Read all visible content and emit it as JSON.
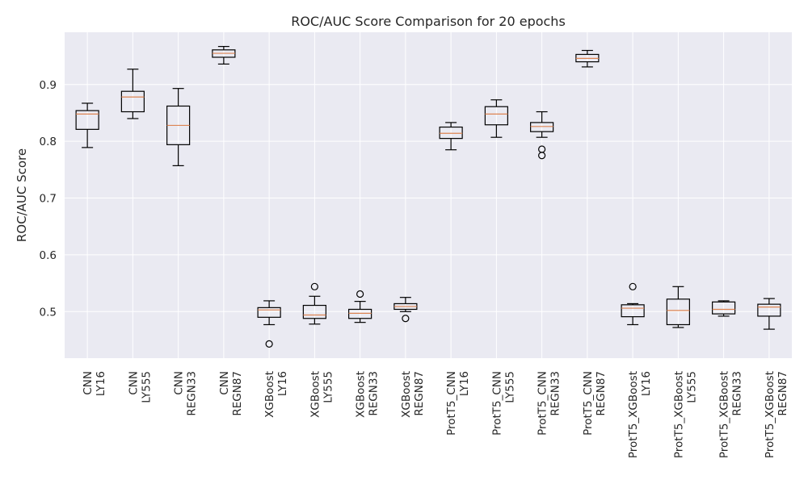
{
  "chart_data": {
    "type": "boxplot",
    "title": "ROC/AUC Score Comparison for 20 epochs",
    "xlabel": "",
    "ylabel": "ROC/AUC Score",
    "ylim": [
      0.418,
      0.992
    ],
    "yticks": [
      0.5,
      0.6,
      0.7,
      0.8,
      0.9
    ],
    "ytick_labels": [
      "0.5",
      "0.6",
      "0.7",
      "0.8",
      "0.9"
    ],
    "grid": true,
    "categories": [
      [
        "CNN",
        "LY16"
      ],
      [
        "CNN",
        "LY555"
      ],
      [
        "CNN",
        "REGN33"
      ],
      [
        "CNN",
        "REGN87"
      ],
      [
        "XGBoost",
        "LY16"
      ],
      [
        "XGBoost",
        "LY555"
      ],
      [
        "XGBoost",
        "REGN33"
      ],
      [
        "XGBoost",
        "REGN87"
      ],
      [
        "ProtT5_CNN",
        "LY16"
      ],
      [
        "ProtT5_CNN",
        "LY555"
      ],
      [
        "ProtT5_CNN",
        "REGN33"
      ],
      [
        "ProtT5_CNN",
        "REGN87"
      ],
      [
        "ProtT5_XGBoost",
        "LY16"
      ],
      [
        "ProtT5_XGBoost",
        "LY555"
      ],
      [
        "ProtT5_XGBoost",
        "REGN33"
      ],
      [
        "ProtT5_XGBoost",
        "REGN87"
      ]
    ],
    "boxes": [
      {
        "whisker_low": 0.789,
        "q1": 0.821,
        "median": 0.848,
        "q3": 0.854,
        "whisker_high": 0.867,
        "outliers": []
      },
      {
        "whisker_low": 0.84,
        "q1": 0.852,
        "median": 0.878,
        "q3": 0.888,
        "whisker_high": 0.927,
        "outliers": []
      },
      {
        "whisker_low": 0.757,
        "q1": 0.794,
        "median": 0.828,
        "q3": 0.862,
        "whisker_high": 0.893,
        "outliers": []
      },
      {
        "whisker_low": 0.936,
        "q1": 0.948,
        "median": 0.955,
        "q3": 0.961,
        "whisker_high": 0.967,
        "outliers": []
      },
      {
        "whisker_low": 0.477,
        "q1": 0.49,
        "median": 0.503,
        "q3": 0.507,
        "whisker_high": 0.519,
        "outliers": [
          0.443
        ]
      },
      {
        "whisker_low": 0.478,
        "q1": 0.488,
        "median": 0.494,
        "q3": 0.511,
        "whisker_high": 0.527,
        "outliers": [
          0.544
        ]
      },
      {
        "whisker_low": 0.481,
        "q1": 0.488,
        "median": 0.497,
        "q3": 0.504,
        "whisker_high": 0.518,
        "outliers": [
          0.531
        ]
      },
      {
        "whisker_low": 0.5,
        "q1": 0.504,
        "median": 0.509,
        "q3": 0.514,
        "whisker_high": 0.525,
        "outliers": [
          0.488
        ]
      },
      {
        "whisker_low": 0.785,
        "q1": 0.805,
        "median": 0.814,
        "q3": 0.825,
        "whisker_high": 0.833,
        "outliers": []
      },
      {
        "whisker_low": 0.807,
        "q1": 0.829,
        "median": 0.848,
        "q3": 0.861,
        "whisker_high": 0.873,
        "outliers": []
      },
      {
        "whisker_low": 0.807,
        "q1": 0.817,
        "median": 0.826,
        "q3": 0.833,
        "whisker_high": 0.852,
        "outliers": [
          0.786,
          0.775
        ]
      },
      {
        "whisker_low": 0.931,
        "q1": 0.94,
        "median": 0.946,
        "q3": 0.953,
        "whisker_high": 0.96,
        "outliers": []
      },
      {
        "whisker_low": 0.477,
        "q1": 0.491,
        "median": 0.506,
        "q3": 0.512,
        "whisker_high": 0.514,
        "outliers": [
          0.544
        ]
      },
      {
        "whisker_low": 0.472,
        "q1": 0.477,
        "median": 0.502,
        "q3": 0.522,
        "whisker_high": 0.544,
        "outliers": []
      },
      {
        "whisker_low": 0.492,
        "q1": 0.496,
        "median": 0.504,
        "q3": 0.517,
        "whisker_high": 0.519,
        "outliers": []
      },
      {
        "whisker_low": 0.469,
        "q1": 0.492,
        "median": 0.508,
        "q3": 0.513,
        "whisker_high": 0.523,
        "outliers": []
      }
    ],
    "colors": {
      "plot_background": "#eaeaf2",
      "grid": "#ffffff",
      "box": "#000000",
      "median": "#dd8452",
      "text": "#262626"
    }
  }
}
